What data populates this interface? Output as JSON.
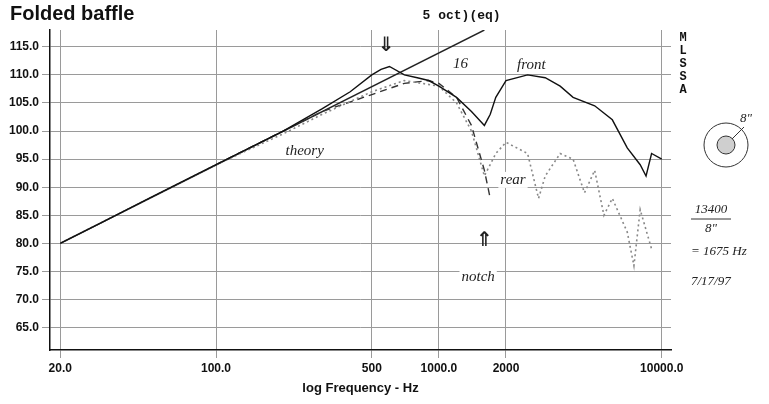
{
  "chart_data": {
    "type": "line",
    "title": "Folded baffle",
    "subtitle": "5 oct)(eq)",
    "x_label": "log Frequency - Hz",
    "log": "x",
    "grid": true,
    "xlim": [
      18,
      11000
    ],
    "xticks": [
      {
        "value": 20,
        "label": "20.0"
      },
      {
        "value": 100,
        "label": "100.0"
      },
      500,
      {
        "value": 1000,
        "label": "1000.0"
      },
      2000,
      {
        "value": 10000,
        "label": "10000.0"
      }
    ],
    "ylim": [
      61,
      118
    ],
    "yticks": [
      {
        "value": 65,
        "label": "65.0"
      },
      {
        "value": 70,
        "label": "70.0"
      },
      {
        "value": 75,
        "label": "75.0"
      },
      {
        "value": 80,
        "label": "80.0"
      },
      {
        "value": 85,
        "label": "85.0"
      },
      {
        "value": 90,
        "label": "90.0"
      },
      {
        "value": 95,
        "label": "95.0"
      },
      {
        "value": 100,
        "label": "100.0"
      },
      {
        "value": 105,
        "label": "105.0"
      },
      {
        "value": 110,
        "label": "110.0"
      },
      {
        "value": 115,
        "label": "115.0"
      }
    ],
    "series": [
      {
        "name": "front",
        "color": "#111111",
        "line_style": "solid",
        "label_at": [
          2600,
          111.8
        ],
        "x": [
          20,
          30,
          50,
          100,
          200,
          300,
          400,
          500,
          550,
          600,
          700,
          800,
          900,
          1000,
          1200,
          1400,
          1600,
          1700,
          1800,
          2000,
          2500,
          3000,
          3500,
          4000,
          5000,
          6000,
          7000,
          8000,
          8500,
          9000,
          10000
        ],
        "values": [
          80,
          83.5,
          88,
          94,
          100,
          104,
          107,
          110,
          111,
          111.5,
          110,
          109.5,
          109,
          108,
          106,
          103.5,
          101,
          103,
          106,
          109,
          110,
          109.5,
          108,
          106,
          104.5,
          102,
          97,
          94,
          92,
          96,
          95
        ]
      },
      {
        "name": "rear",
        "color": "#888888",
        "line_style": "dotted",
        "label_at": [
          2150,
          91.3
        ],
        "x": [
          20,
          100,
          200,
          300,
          500,
          700,
          1000,
          1200,
          1400,
          1600,
          1800,
          2000,
          2500,
          2800,
          3000,
          3500,
          4000,
          4500,
          5000,
          5500,
          6000,
          7000,
          7500,
          8000,
          9000
        ],
        "values": [
          80,
          94,
          99.5,
          103,
          107,
          109,
          108,
          105,
          100,
          92,
          96,
          98,
          96,
          88,
          92,
          96,
          95,
          89,
          93,
          85,
          88,
          82,
          76,
          86,
          79
        ]
      },
      {
        "name": "theory",
        "color": "#333333",
        "line_style": "dashed",
        "label_at": [
          250,
          96.5
        ],
        "x": [
          100,
          200,
          300,
          500,
          700,
          900,
          1000,
          1200,
          1400,
          1600,
          1700
        ],
        "values": [
          94,
          100,
          103.5,
          106.5,
          108.5,
          109,
          108.5,
          106,
          101,
          93,
          88
        ]
      },
      {
        "color": "#222222",
        "line_style": "solid",
        "x": [
          20,
          1600
        ],
        "values": [
          80,
          118
        ]
      }
    ],
    "annotations": [
      {
        "text": "⇓",
        "x": 580,
        "y": 115.2
      },
      {
        "text": "⇑",
        "x": 1600,
        "y": 80.5
      },
      {
        "text": "notch",
        "x": 1500,
        "y": 74
      },
      {
        "text": "16",
        "x": 1250,
        "y": 112
      }
    ],
    "notes": {
      "side_label": "MLSSA",
      "diagram_label": "8\"",
      "formula_numerator": "13400",
      "formula_denominator": "8\"",
      "formula_result": "= 1675 Hz",
      "date": "7/17/97"
    }
  }
}
